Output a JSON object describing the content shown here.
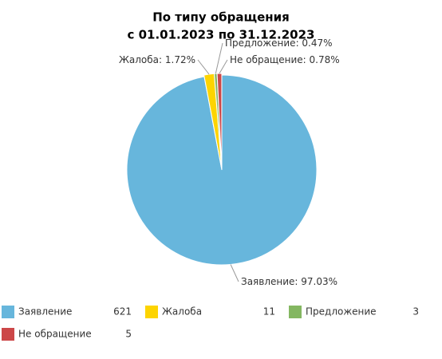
{
  "chart_data": {
    "type": "pie",
    "title": [
      "По типу обращения",
      "с 01.01.2023 по 31.12.2023"
    ],
    "categories": [
      "Заявление",
      "Жалоба",
      "Предложение",
      "Не обращение"
    ],
    "values": [
      97.03,
      1.72,
      0.47,
      0.78
    ],
    "value_labels": [
      "97.03%",
      "1.72%",
      "0.47%",
      "0.78%"
    ],
    "colors": [
      "#67b6dc",
      "#fdd400",
      "#84b761",
      "#cc4748"
    ],
    "legend_counts": [
      621,
      11,
      3,
      5
    ],
    "legend": "bottom"
  }
}
